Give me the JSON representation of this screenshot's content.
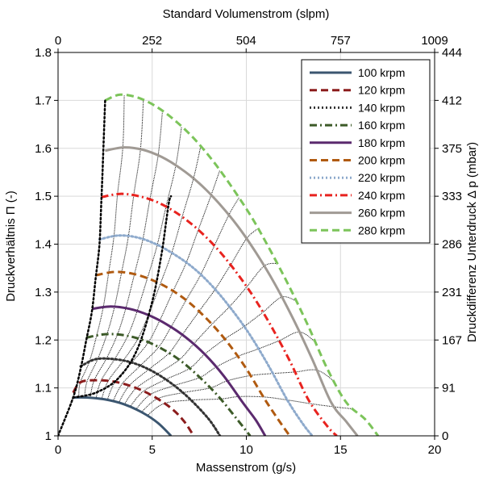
{
  "chart_data": {
    "type": "line",
    "title": "",
    "xlabel": "Massenstrom (g/s)",
    "ylabel": "Druckverhältnis Π (-)",
    "x2label": "Standard Volumenstrom (slpm)",
    "y2label": "Druckdifferenz Unterdruck Δ p (mbar)",
    "xlim": [
      0,
      20
    ],
    "ylim": [
      1,
      1.8
    ],
    "x_ticks": [
      0,
      5,
      10,
      15,
      20
    ],
    "y_ticks": [
      1,
      1.1,
      1.2,
      1.3,
      1.4,
      1.5,
      1.6,
      1.7,
      1.8
    ],
    "y_tick_labels": [
      "1",
      "1.1",
      "1.2",
      "1.3",
      "1.4",
      "1.5",
      "1.6",
      "1.7",
      "1.8"
    ],
    "x2_ticks": [
      0,
      252,
      504,
      757,
      1009
    ],
    "x2_max": 1009,
    "y2_ticks": [
      0,
      91,
      167,
      231,
      286,
      333,
      375,
      412,
      444
    ],
    "grid": true,
    "legend_position": "top-right",
    "series": [
      {
        "name": "100 krpm",
        "color": "#3b5670",
        "dash": "solid",
        "x": [
          0.8,
          1.5,
          2.5,
          3.5,
          4.5,
          5.3,
          6.0
        ],
        "y": [
          1.08,
          1.08,
          1.076,
          1.066,
          1.048,
          1.027,
          1.0
        ]
      },
      {
        "name": "120 krpm",
        "color": "#8b1c1c",
        "dash": "dashed",
        "x": [
          0.8,
          1.2,
          2.0,
          3.0,
          4.0,
          5.0,
          6.0,
          6.7,
          7.2
        ],
        "y": [
          1.09,
          1.112,
          1.116,
          1.113,
          1.102,
          1.084,
          1.058,
          1.03,
          1.0
        ]
      },
      {
        "name": "140 krpm",
        "color": "#333333",
        "dash": "dotted",
        "x": [
          1.2,
          2.0,
          3.0,
          4.0,
          5.0,
          6.0,
          7.0,
          8.0,
          8.6
        ],
        "y": [
          1.145,
          1.16,
          1.16,
          1.152,
          1.135,
          1.11,
          1.077,
          1.035,
          1.0
        ]
      },
      {
        "name": "160 krpm",
        "color": "#3c5a28",
        "dash": "dashdot",
        "x": [
          1.5,
          2.5,
          3.5,
          4.5,
          5.5,
          6.5,
          7.5,
          8.5,
          9.5,
          10.2
        ],
        "y": [
          1.205,
          1.212,
          1.21,
          1.2,
          1.182,
          1.157,
          1.123,
          1.083,
          1.035,
          1.0
        ]
      },
      {
        "name": "180 krpm",
        "color": "#5b2a6e",
        "dash": "solid",
        "x": [
          1.8,
          2.8,
          3.8,
          4.8,
          5.8,
          6.8,
          7.8,
          8.8,
          9.8,
          10.5,
          11.0
        ],
        "y": [
          1.265,
          1.27,
          1.265,
          1.252,
          1.232,
          1.205,
          1.17,
          1.125,
          1.07,
          1.033,
          1.0
        ]
      },
      {
        "name": "200 krpm",
        "color": "#b05a10",
        "dash": "dashed",
        "x": [
          2.0,
          3.0,
          4.0,
          5.0,
          6.0,
          7.0,
          8.0,
          9.0,
          10.0,
          11.0,
          11.8,
          12.3
        ],
        "y": [
          1.335,
          1.342,
          1.338,
          1.325,
          1.305,
          1.277,
          1.24,
          1.195,
          1.14,
          1.075,
          1.028,
          1.0
        ]
      },
      {
        "name": "220 krpm",
        "color": "#8eaacc",
        "dash": "dotted",
        "x": [
          2.2,
          3.2,
          4.2,
          5.2,
          6.2,
          7.2,
          8.2,
          9.2,
          10.2,
          11.2,
          12.2,
          13.0,
          13.5
        ],
        "y": [
          1.41,
          1.418,
          1.414,
          1.4,
          1.378,
          1.35,
          1.312,
          1.265,
          1.21,
          1.145,
          1.073,
          1.025,
          1.0
        ]
      },
      {
        "name": "240 krpm",
        "color": "#e8231f",
        "dash": "dashdot",
        "x": [
          2.3,
          3.3,
          4.3,
          5.3,
          6.3,
          7.3,
          8.3,
          9.3,
          10.3,
          11.3,
          12.3,
          13.3,
          14.3,
          14.8
        ],
        "y": [
          1.498,
          1.505,
          1.5,
          1.487,
          1.465,
          1.435,
          1.397,
          1.35,
          1.295,
          1.23,
          1.157,
          1.075,
          1.02,
          1.0
        ]
      },
      {
        "name": "260 krpm",
        "color": "#a09a94",
        "dash": "solid",
        "x": [
          2.5,
          3.5,
          4.5,
          5.5,
          6.5,
          7.5,
          8.5,
          9.5,
          10.5,
          11.5,
          12.5,
          13.5,
          14.5,
          15.3,
          15.9
        ],
        "y": [
          1.595,
          1.602,
          1.597,
          1.582,
          1.558,
          1.527,
          1.487,
          1.44,
          1.383,
          1.318,
          1.243,
          1.16,
          1.07,
          1.03,
          1.0
        ]
      },
      {
        "name": "280 krpm",
        "color": "#7cc45a",
        "dash": "dashed",
        "x": [
          2.5,
          3.3,
          4.3,
          5.3,
          6.3,
          7.3,
          8.3,
          9.3,
          10.3,
          11.3,
          12.3,
          13.3,
          14.3,
          15.3,
          16.3,
          17.0
        ],
        "y": [
          1.7,
          1.712,
          1.705,
          1.685,
          1.655,
          1.617,
          1.57,
          1.515,
          1.455,
          1.385,
          1.31,
          1.228,
          1.14,
          1.07,
          1.035,
          1.0
        ]
      },
      {
        "name": "",
        "color": "#000000",
        "dash": "dotted",
        "role": "surge line",
        "x": [
          0.0,
          0.8,
          1.2,
          1.5,
          1.8,
          2.0,
          2.2,
          2.3,
          2.4,
          2.5
        ],
        "y": [
          1.0,
          1.08,
          1.14,
          1.2,
          1.26,
          1.33,
          1.4,
          1.49,
          1.59,
          1.7
        ]
      },
      {
        "name": "",
        "color": "#000000",
        "dash": "dotted",
        "role": "reference curve",
        "x": [
          0.8,
          2.0,
          3.2,
          4.2,
          5.0,
          5.5,
          5.75,
          5.9,
          6.0
        ],
        "y": [
          1.08,
          1.09,
          1.12,
          1.18,
          1.28,
          1.38,
          1.45,
          1.49,
          1.5
        ]
      }
    ]
  }
}
